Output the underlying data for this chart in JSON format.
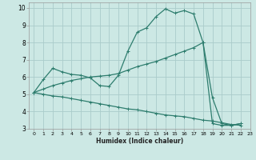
{
  "xlabel": "Humidex (Indice chaleur)",
  "bg_color": "#cce8e4",
  "grid_color": "#aaccca",
  "line_color": "#2e7d6e",
  "xlim": [
    -0.5,
    23
  ],
  "ylim": [
    3,
    10.3
  ],
  "xticks": [
    0,
    1,
    2,
    3,
    4,
    5,
    6,
    7,
    8,
    9,
    10,
    11,
    12,
    13,
    14,
    15,
    16,
    17,
    18,
    19,
    20,
    21,
    22,
    23
  ],
  "yticks": [
    3,
    4,
    5,
    6,
    7,
    8,
    9,
    10
  ],
  "line1_x": [
    0,
    1,
    2,
    3,
    4,
    5,
    6,
    7,
    8,
    9,
    10,
    11,
    12,
    13,
    14,
    15,
    16,
    17,
    18,
    19,
    20,
    21,
    22
  ],
  "line1_y": [
    5.1,
    5.85,
    6.5,
    6.3,
    6.15,
    6.1,
    5.95,
    5.5,
    5.45,
    6.1,
    7.5,
    8.6,
    8.85,
    9.5,
    9.95,
    9.7,
    9.85,
    9.65,
    8.0,
    4.8,
    3.3,
    3.2,
    3.3
  ],
  "line2_x": [
    0,
    1,
    2,
    3,
    4,
    5,
    6,
    7,
    8,
    9,
    10,
    11,
    12,
    13,
    14,
    15,
    16,
    17,
    18,
    19,
    20,
    21,
    22
  ],
  "line2_y": [
    5.1,
    5.3,
    5.5,
    5.65,
    5.8,
    5.9,
    6.0,
    6.05,
    6.1,
    6.2,
    6.4,
    6.6,
    6.75,
    6.9,
    7.1,
    7.3,
    7.5,
    7.7,
    8.0,
    3.3,
    3.2,
    3.2,
    3.3
  ],
  "line3_x": [
    0,
    1,
    2,
    3,
    4,
    5,
    6,
    7,
    8,
    9,
    10,
    11,
    12,
    13,
    14,
    15,
    16,
    17,
    18,
    19,
    20,
    21,
    22
  ],
  "line3_y": [
    5.1,
    5.0,
    4.9,
    4.85,
    4.75,
    4.65,
    4.55,
    4.45,
    4.35,
    4.25,
    4.15,
    4.1,
    4.0,
    3.9,
    3.8,
    3.75,
    3.7,
    3.6,
    3.5,
    3.45,
    3.35,
    3.25,
    3.2
  ]
}
